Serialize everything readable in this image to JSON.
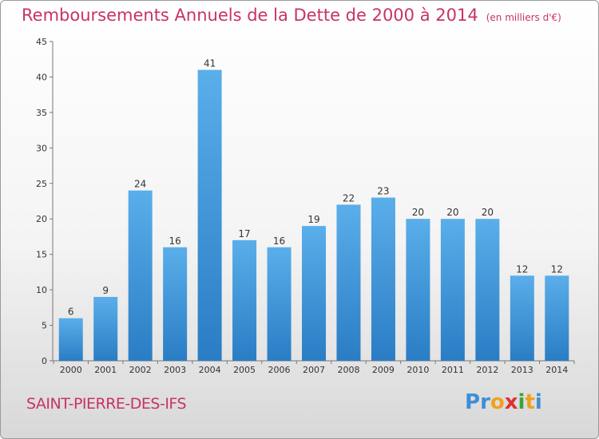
{
  "title": "Remboursements Annuels de la Dette de 2000 à 2014",
  "unit": "(en milliers d'€)",
  "commune": "SAINT-PIERRE-DES-IFS",
  "logo": {
    "text": "Proxiti",
    "letters": [
      {
        "ch": "P",
        "color": "#3d8fd6"
      },
      {
        "ch": "r",
        "color": "#3d8fd6"
      },
      {
        "ch": "o",
        "color": "#f0a020"
      },
      {
        "ch": "x",
        "color": "#e03030"
      },
      {
        "ch": "i",
        "color": "#3aa33a"
      },
      {
        "ch": "t",
        "color": "#f0a020"
      },
      {
        "ch": "i",
        "color": "#3d8fd6"
      }
    ]
  },
  "colors": {
    "bar_top": "#5aaeea",
    "bar_bottom": "#2a7dc4",
    "title": "#c8326a"
  },
  "chart_data": {
    "type": "bar",
    "categories": [
      "2000",
      "2001",
      "2002",
      "2003",
      "2004",
      "2005",
      "2006",
      "2007",
      "2008",
      "2009",
      "2010",
      "2011",
      "2012",
      "2013",
      "2014"
    ],
    "values": [
      6,
      9,
      24,
      16,
      41,
      17,
      16,
      19,
      22,
      23,
      20,
      20,
      20,
      12,
      12
    ],
    "ylim": [
      0,
      45
    ],
    "yticks": [
      0,
      5,
      10,
      15,
      20,
      25,
      30,
      35,
      40,
      45
    ],
    "grid": false,
    "legend": "none"
  }
}
